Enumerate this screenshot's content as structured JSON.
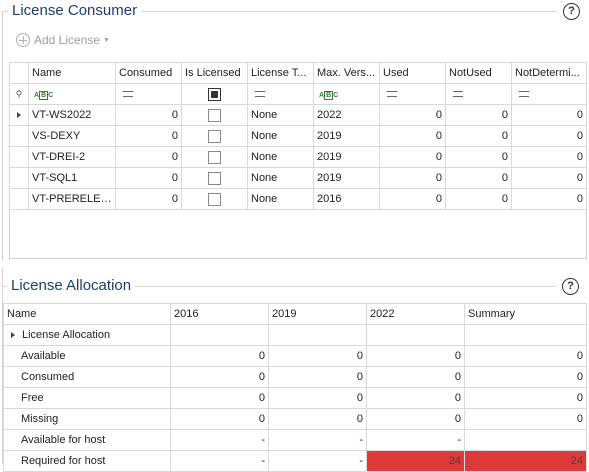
{
  "consumer": {
    "title": "License Consumer",
    "help": "?",
    "add_label": "Add License",
    "columns": [
      "Name",
      "Consumed",
      "Is Licensed",
      "License T...",
      "Max. Vers...",
      "Used",
      "NotUsed",
      "NotDetermi..."
    ],
    "rows": [
      {
        "name": "VT-WS2022",
        "consumed": "0",
        "type": "None",
        "max": "2022",
        "used": "0",
        "notused": "0",
        "notdet": "0"
      },
      {
        "name": "VS-DEXY",
        "consumed": "0",
        "type": "None",
        "max": "2019",
        "used": "0",
        "notused": "0",
        "notdet": "0"
      },
      {
        "name": "VT-DREI-2",
        "consumed": "0",
        "type": "None",
        "max": "2019",
        "used": "0",
        "notused": "0",
        "notdet": "0"
      },
      {
        "name": "VT-SQL1",
        "consumed": "0",
        "type": "None",
        "max": "2019",
        "used": "0",
        "notused": "0",
        "notdet": "0"
      },
      {
        "name": "VT-PRERELEASE",
        "consumed": "0",
        "type": "None",
        "max": "2016",
        "used": "0",
        "notused": "0",
        "notdet": "0"
      }
    ]
  },
  "allocation": {
    "title": "License Allocation",
    "help": "?",
    "columns": [
      "Name",
      "2016",
      "2019",
      "2022",
      "Summary"
    ],
    "group_label": "License Allocation",
    "rows": [
      {
        "name": "Available",
        "c2016": "0",
        "c2019": "0",
        "c2022": "0",
        "sum": "0"
      },
      {
        "name": "Consumed",
        "c2016": "0",
        "c2019": "0",
        "c2022": "0",
        "sum": "0"
      },
      {
        "name": "Free",
        "c2016": "0",
        "c2019": "0",
        "c2022": "0",
        "sum": "0"
      },
      {
        "name": "Missing",
        "c2016": "0",
        "c2019": "0",
        "c2022": "0",
        "sum": "0"
      },
      {
        "name": "Available for host",
        "c2016": "-",
        "c2019": "-",
        "c2022": "-",
        "sum": ""
      },
      {
        "name": "Required for host",
        "c2016": "-",
        "c2019": "-",
        "c2022": "24",
        "sum": "24"
      }
    ],
    "highlight_color": "#e0393a"
  }
}
